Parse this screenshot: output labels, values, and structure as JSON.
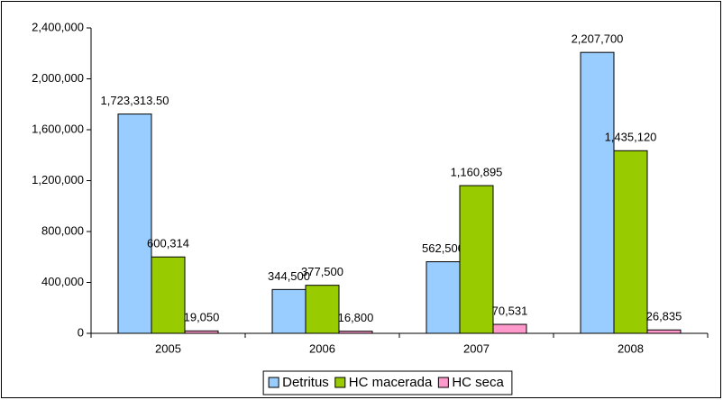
{
  "chart_data": {
    "type": "bar",
    "categories": [
      "2005",
      "2006",
      "2007",
      "2008"
    ],
    "series": [
      {
        "name": "Detritus",
        "color": "#99ccff",
        "values": [
          1723313.5,
          344500,
          562500,
          2207700
        ],
        "value_labels": [
          "1,723,313.50",
          "344,500",
          "562,500",
          "2,207,700"
        ]
      },
      {
        "name": "HC macerada",
        "color": "#99cc00",
        "values": [
          600314,
          377500,
          1160895,
          1435120
        ],
        "value_labels": [
          "600,314",
          "377,500",
          "1,160,895",
          "1,435,120"
        ]
      },
      {
        "name": "HC seca",
        "color": "#ff99cc",
        "values": [
          19050,
          16800,
          70531,
          26835
        ],
        "value_labels": [
          "19,050",
          "16,800",
          "70,531",
          "26,835"
        ]
      }
    ],
    "ylim": [
      0,
      2400000
    ],
    "yticks": [
      0,
      {
        "value": 400000,
        "label": "400,000"
      },
      {
        "value": 800000,
        "label": "800,000"
      },
      {
        "value": 1200000,
        "label": "1,200,000"
      },
      {
        "value": 1600000,
        "label": "1,600,000"
      },
      {
        "value": 2000000,
        "label": "2,000,000"
      },
      {
        "value": 2400000,
        "label": "2,400,000"
      }
    ],
    "legend": "bottom"
  }
}
